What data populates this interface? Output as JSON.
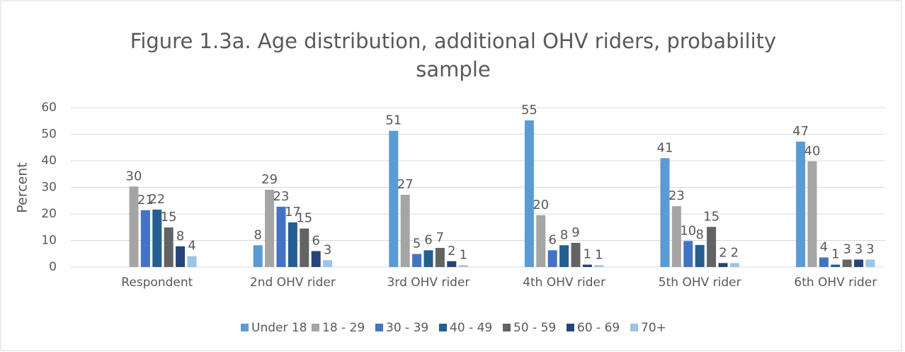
{
  "chart_data": {
    "type": "bar",
    "title": "Figure 1.3a.  Age distribution, additional OHV riders, probability sample",
    "y_label": "Percent",
    "categories": [
      "Respondent",
      "2nd OHV rider",
      "3rd OHV rider",
      "4th OHV rider",
      "5th OHV rider",
      "6th OHV rider"
    ],
    "series": [
      {
        "name": "Under 18",
        "color": "#5b9bd5",
        "values": [
          null,
          8.2,
          51.3,
          55.2,
          41.0,
          47.2
        ],
        "value_labels": [
          null,
          "8",
          "51",
          "55",
          "41",
          "47"
        ]
      },
      {
        "name": "18 - 29",
        "color": "#a5a5a5",
        "values": [
          30.3,
          29.1,
          27.2,
          19.5,
          22.9,
          39.8
        ],
        "value_labels": [
          "30",
          "29",
          "27",
          "20",
          "23",
          "40"
        ]
      },
      {
        "name": "30 - 39",
        "color": "#4472c4",
        "values": [
          21.4,
          22.7,
          4.9,
          6.3,
          9.8,
          3.6
        ],
        "value_labels": [
          "21",
          "23",
          "5",
          "6",
          "10",
          "4"
        ]
      },
      {
        "name": "40 - 49",
        "color": "#255e91",
        "values": [
          21.6,
          16.8,
          6.3,
          8.2,
          8.3,
          0.9
        ],
        "value_labels": [
          "22",
          "17",
          "6",
          "8",
          "8",
          "1"
        ]
      },
      {
        "name": "50 - 59",
        "color": "#636363",
        "values": [
          14.9,
          14.5,
          7.2,
          9.1,
          15.1,
          2.8
        ],
        "value_labels": [
          "15",
          "15",
          "7",
          "9",
          "15",
          "3"
        ]
      },
      {
        "name": "60 - 69",
        "color": "#264478",
        "values": [
          7.8,
          6.0,
          2.2,
          0.9,
          1.5,
          2.8
        ],
        "value_labels": [
          "8",
          "6",
          "2",
          "1",
          "2",
          "3"
        ]
      },
      {
        "name": "70+",
        "color": "#9dc3e6",
        "values": [
          4.1,
          2.6,
          0.7,
          0.7,
          1.5,
          2.8
        ],
        "value_labels": [
          "4",
          "3",
          "1",
          "1",
          "2",
          "3"
        ]
      }
    ],
    "ylim": [
      0,
      60
    ],
    "yticks": [
      0,
      10,
      20,
      30,
      40,
      50,
      60
    ],
    "grid": true,
    "legend": "bottom"
  }
}
